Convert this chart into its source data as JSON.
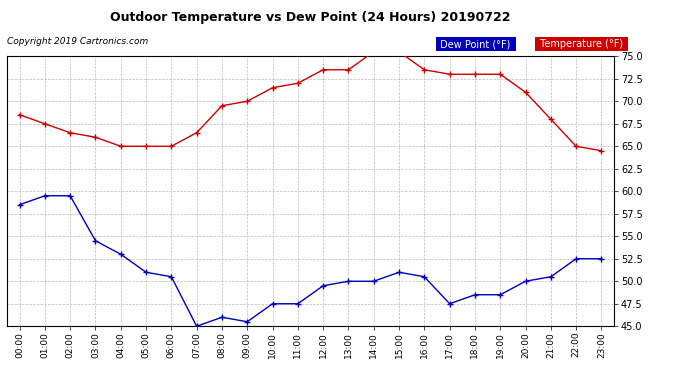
{
  "title": "Outdoor Temperature vs Dew Point (24 Hours) 20190722",
  "copyright": "Copyright 2019 Cartronics.com",
  "hours": [
    "00:00",
    "01:00",
    "02:00",
    "03:00",
    "04:00",
    "05:00",
    "06:00",
    "07:00",
    "08:00",
    "09:00",
    "10:00",
    "11:00",
    "12:00",
    "13:00",
    "14:00",
    "15:00",
    "16:00",
    "17:00",
    "18:00",
    "19:00",
    "20:00",
    "21:00",
    "22:00",
    "23:00"
  ],
  "temperature": [
    68.5,
    67.5,
    66.5,
    66.0,
    65.0,
    65.0,
    65.0,
    66.5,
    69.5,
    70.0,
    71.5,
    72.0,
    73.5,
    73.5,
    75.5,
    75.5,
    73.5,
    73.0,
    73.0,
    73.0,
    71.0,
    68.0,
    65.0,
    64.5
  ],
  "dew_point": [
    58.5,
    59.5,
    59.5,
    54.5,
    53.0,
    51.0,
    50.5,
    45.0,
    46.0,
    45.5,
    47.5,
    47.5,
    49.5,
    50.0,
    50.0,
    51.0,
    50.5,
    47.5,
    48.5,
    48.5,
    50.0,
    50.5,
    52.5,
    52.5
  ],
  "temp_color": "#cc0000",
  "dew_color": "#0000bb",
  "ylim_min": 45.0,
  "ylim_max": 75.0,
  "yticks": [
    45.0,
    47.5,
    50.0,
    52.5,
    55.0,
    57.5,
    60.0,
    62.5,
    65.0,
    67.5,
    70.0,
    72.5,
    75.0
  ],
  "background_color": "#ffffff",
  "grid_color": "#bbbbbb",
  "legend_dew_bg": "#0000bb",
  "legend_temp_bg": "#cc0000",
  "legend_text_color": "#ffffff",
  "legend_dew_label": "Dew Point (°F)",
  "legend_temp_label": "Temperature (°F)"
}
